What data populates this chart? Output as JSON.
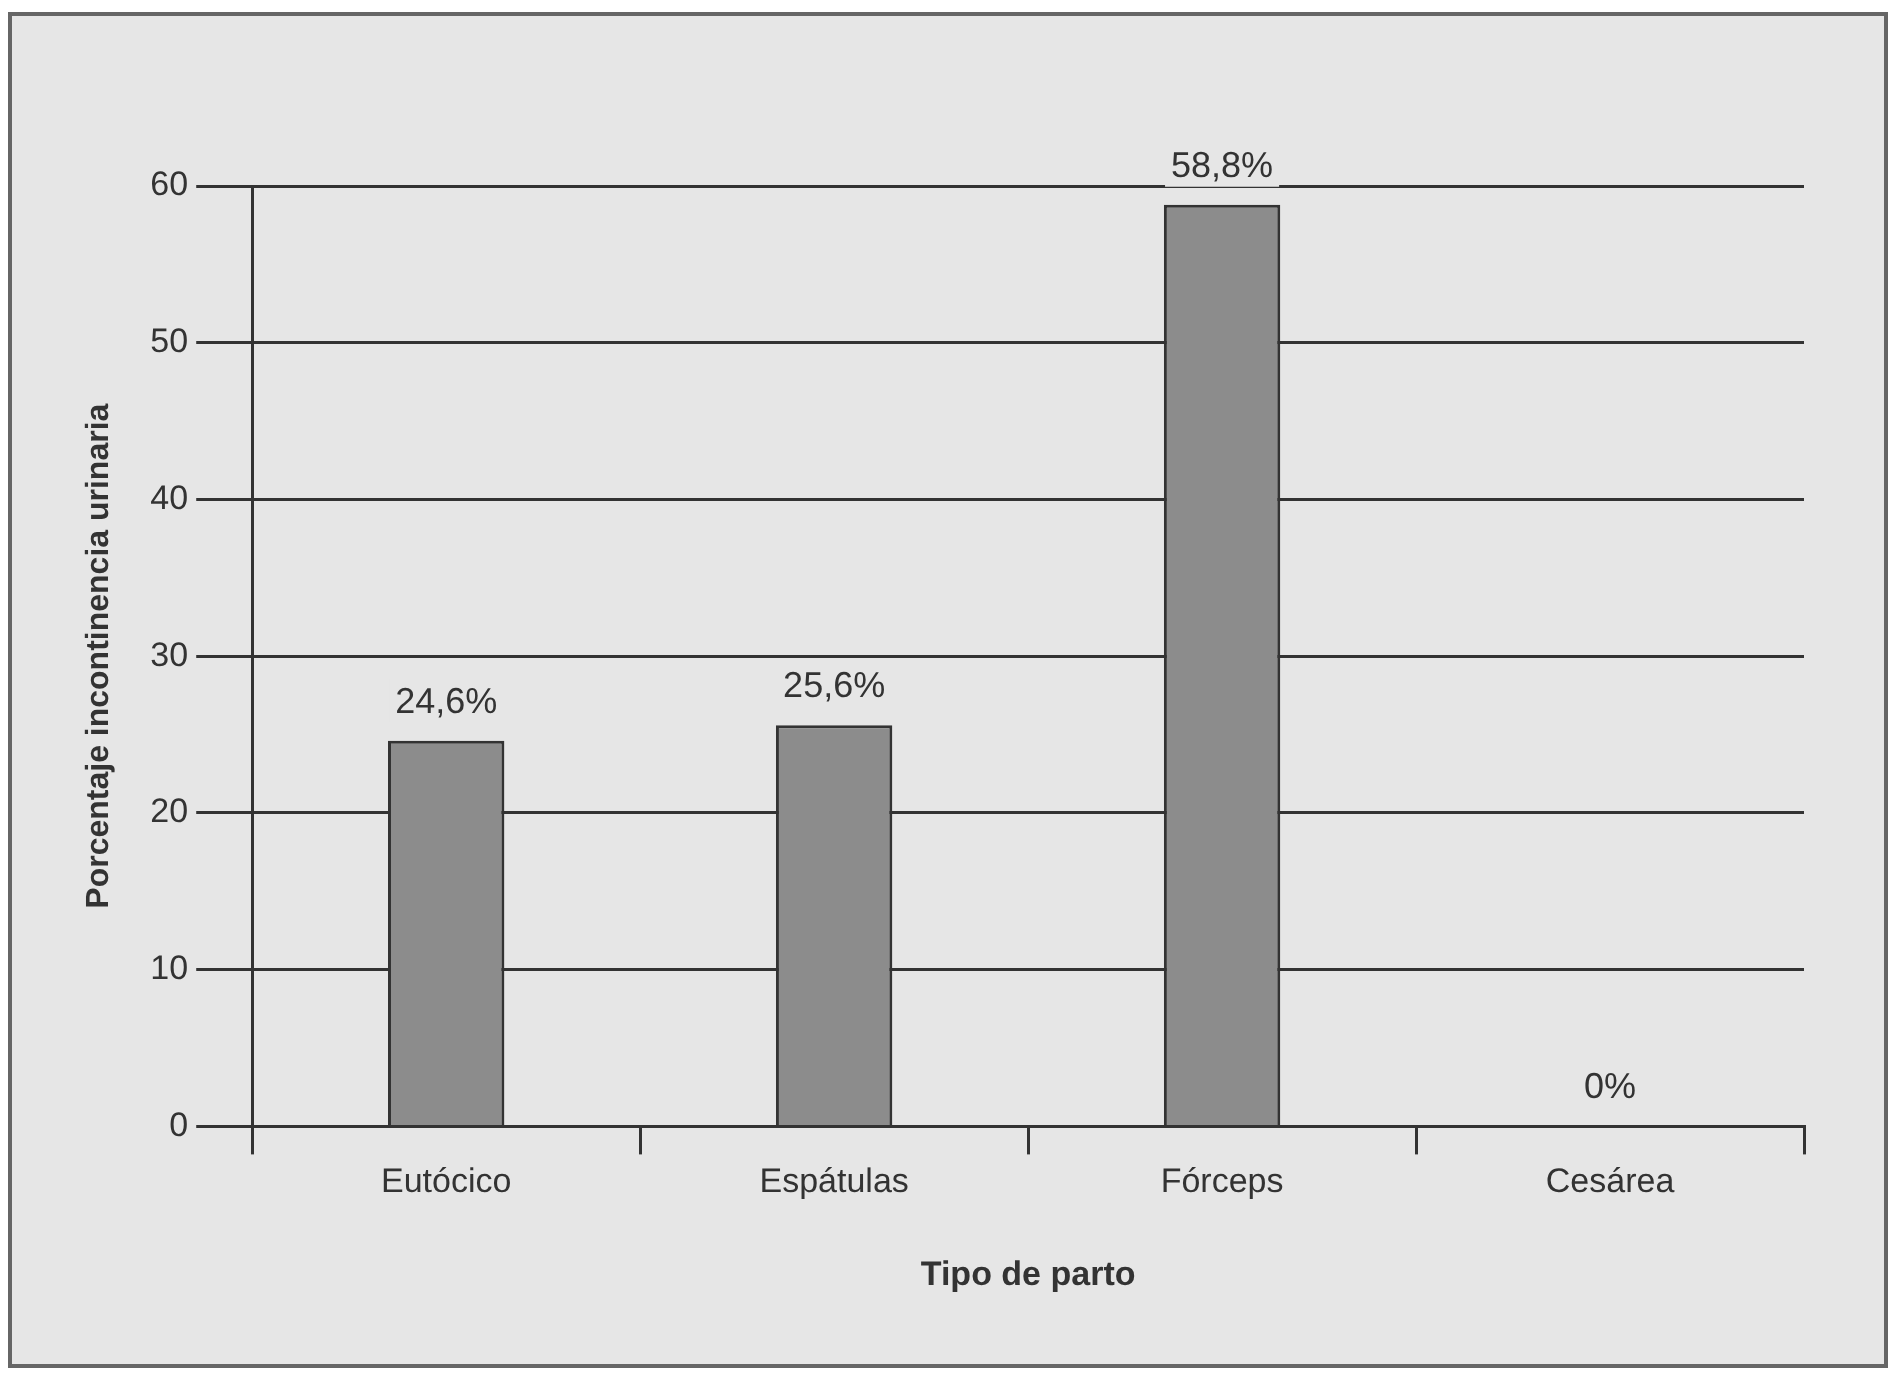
{
  "chart_data": {
    "type": "bar",
    "xlabel": "Tipo de parto",
    "ylabel": "Porcentaje incontinencia urinaria",
    "categories": [
      "Eutócico",
      "Espátulas",
      "Fórceps",
      "Cesárea"
    ],
    "values": [
      24.6,
      25.6,
      58.8,
      0
    ],
    "color": "#8c8c8c",
    "value_labels": [
      "24,6%",
      "25,6%",
      "58,8%",
      "0%"
    ],
    "ylim": [
      0,
      60
    ],
    "yticks": [
      0,
      10,
      20,
      30,
      40,
      50,
      60
    ],
    "grid": "y",
    "legend": false
  }
}
